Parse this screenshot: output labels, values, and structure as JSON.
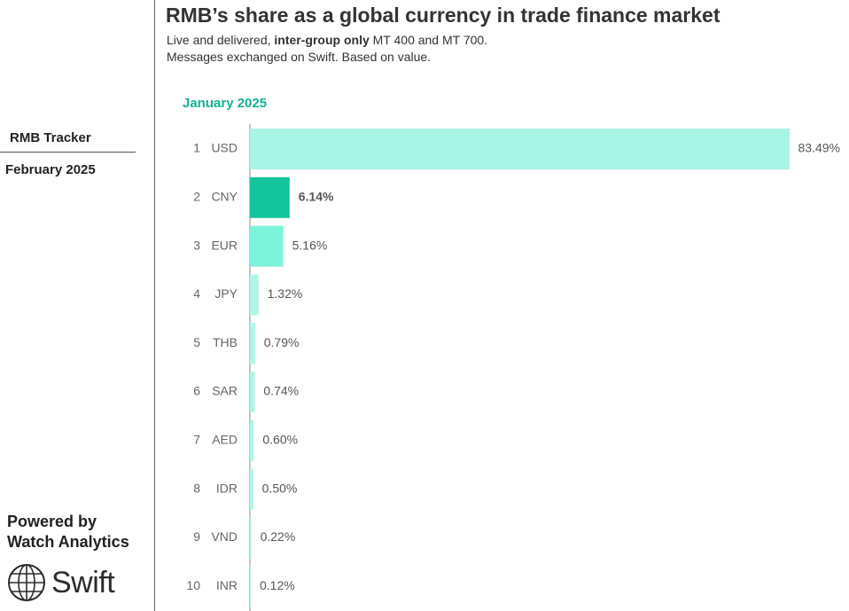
{
  "sidebar": {
    "tracker_title": "RMB Tracker",
    "tracker_date": "February 2025",
    "powered_line1": "Powered by",
    "powered_line2": "Watch Analytics",
    "logo_text": "Swift"
  },
  "header": {
    "title": "RMB’s share as a global currency in trade finance market",
    "subtitle_prefix": "Live and delivered, ",
    "subtitle_bold": "inter-group only",
    "subtitle_suffix": " MT 400 and MT 700.",
    "subtitle_line2": "Messages exchanged on Swift. Based on value."
  },
  "chart_data": {
    "type": "bar",
    "orientation": "horizontal",
    "title": "RMB’s share as a global currency in trade finance market",
    "period_label": "January 2025",
    "ranks": [
      "1",
      "2",
      "3",
      "4",
      "5",
      "6",
      "7",
      "8",
      "9",
      "10"
    ],
    "categories": [
      "USD",
      "CNY",
      "EUR",
      "JPY",
      "THB",
      "SAR",
      "AED",
      "IDR",
      "VND",
      "INR"
    ],
    "values": [
      83.49,
      6.14,
      5.16,
      1.32,
      0.79,
      0.74,
      0.6,
      0.5,
      0.22,
      0.12
    ],
    "value_labels": [
      "83.49%",
      "6.14%",
      "5.16%",
      "1.32%",
      "0.79%",
      "0.74%",
      "0.60%",
      "0.50%",
      "0.22%",
      "0.12%"
    ],
    "highlight": "CNY",
    "colors": {
      "USD": "#a8f5e6",
      "CNY": "#13c49c",
      "EUR": "#7ef3db",
      "default": "#b0f5e8"
    },
    "grid": false,
    "legend": "none"
  }
}
